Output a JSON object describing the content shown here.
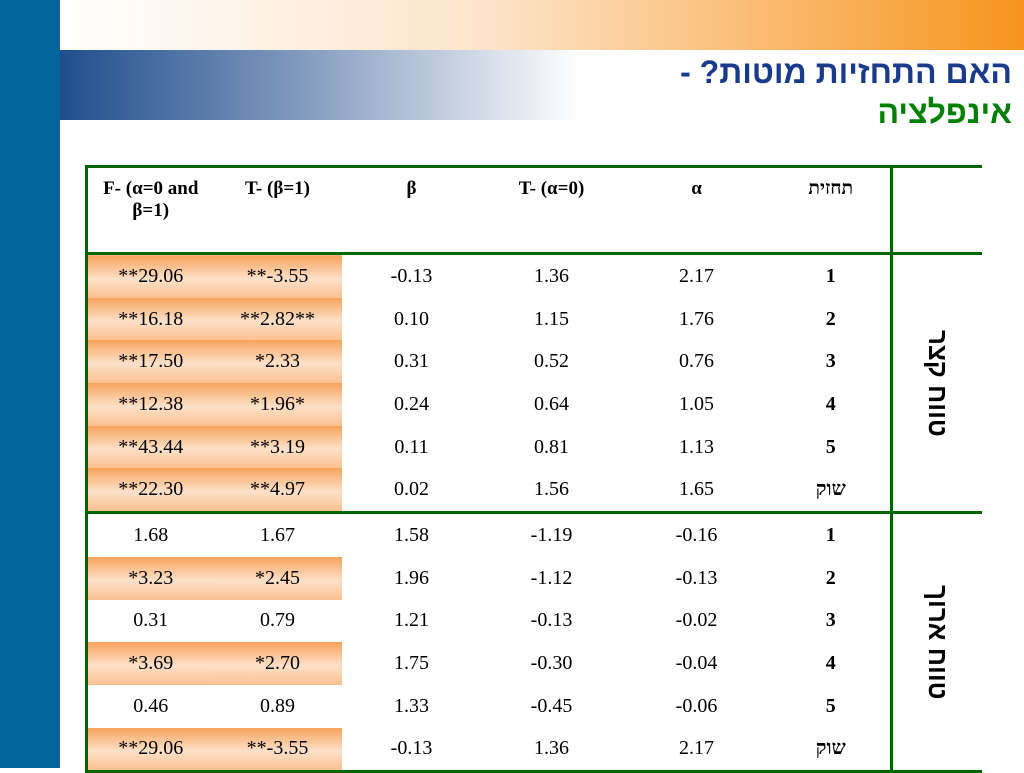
{
  "title": {
    "line1": "האם התחזיות מוטות?  -",
    "line2": "אינפלציה"
  },
  "table": {
    "headers": [
      "תחזית",
      "α",
      "T-  (α=0)",
      "β",
      "T- (β=1)",
      "F-  (α=0 and β=1)"
    ],
    "groups": [
      {
        "label": "טווח קצר",
        "rows": [
          [
            "1",
            "2.17",
            "1.36",
            "-0.13",
            "**-3.55",
            "**29.06"
          ],
          [
            "2",
            "1.76",
            "1.15",
            "0.10",
            "**2.82**",
            "**16.18"
          ],
          [
            "3",
            "0.76",
            "0.52",
            "0.31",
            "*2.33",
            "**17.50"
          ],
          [
            "4",
            "1.05",
            "0.64",
            "0.24",
            "*1.96*",
            "**12.38"
          ],
          [
            "5",
            "1.13",
            "0.81",
            "0.11",
            "**3.19",
            "**43.44"
          ],
          [
            "שוק",
            "1.65",
            "1.56",
            "0.02",
            "**4.97",
            "**22.30"
          ]
        ]
      },
      {
        "label": "טווח ארוך",
        "rows": [
          [
            "1",
            "-0.16",
            "-1.19",
            "1.58",
            "1.67",
            "1.68"
          ],
          [
            "2",
            "-0.13",
            "-1.12",
            "1.96",
            "*2.45",
            "*3.23"
          ],
          [
            "3",
            "-0.02",
            "-0.13",
            "1.21",
            "0.79",
            "0.31"
          ],
          [
            "4",
            "-0.04",
            "-0.30",
            "1.75",
            "*2.70",
            "*3.69"
          ],
          [
            "5",
            "-0.06",
            "-0.45",
            "1.33",
            "0.89",
            "0.46"
          ],
          [
            "שוק",
            "2.17",
            "1.36",
            "-0.13",
            "**-3.55",
            "**29.06"
          ]
        ]
      }
    ]
  }
}
